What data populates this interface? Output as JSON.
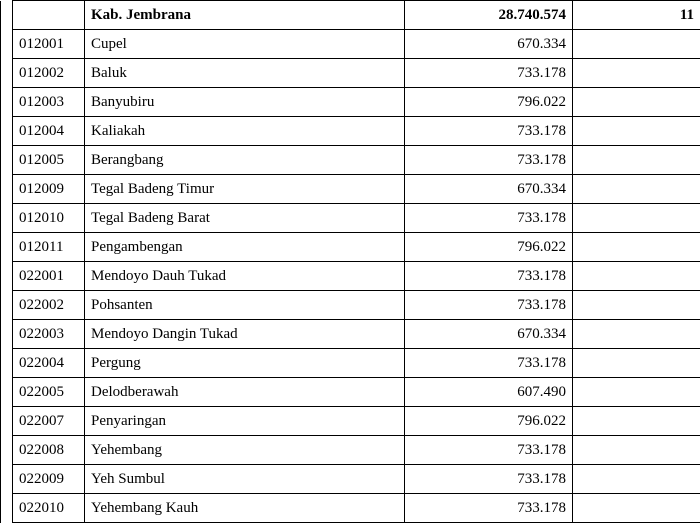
{
  "header": {
    "name": "Kab. Jembrana",
    "total": "28.740.574",
    "extra": "11"
  },
  "rows": [
    {
      "code": "012001",
      "name": "Cupel",
      "value": "670.334"
    },
    {
      "code": "012002",
      "name": "Baluk",
      "value": "733.178"
    },
    {
      "code": "012003",
      "name": "Banyubiru",
      "value": "796.022"
    },
    {
      "code": "012004",
      "name": "Kaliakah",
      "value": "733.178"
    },
    {
      "code": "012005",
      "name": "Berangbang",
      "value": "733.178"
    },
    {
      "code": "012009",
      "name": "Tegal Badeng Timur",
      "value": "670.334"
    },
    {
      "code": "012010",
      "name": "Tegal Badeng Barat",
      "value": "733.178"
    },
    {
      "code": "012011",
      "name": "Pengambengan",
      "value": "796.022"
    },
    {
      "code": "022001",
      "name": "Mendoyo Dauh Tukad",
      "value": "733.178"
    },
    {
      "code": "022002",
      "name": "Pohsanten",
      "value": "733.178"
    },
    {
      "code": "022003",
      "name": "Mendoyo Dangin Tukad",
      "value": "670.334"
    },
    {
      "code": "022004",
      "name": "Pergung",
      "value": "733.178"
    },
    {
      "code": "022005",
      "name": "Delodberawah",
      "value": "607.490"
    },
    {
      "code": "022007",
      "name": "Penyaringan",
      "value": "796.022"
    },
    {
      "code": "022008",
      "name": "Yehembang",
      "value": "733.178"
    },
    {
      "code": "022009",
      "name": "Yeh Sumbul",
      "value": "733.178"
    },
    {
      "code": "022010",
      "name": "Yehembang Kauh",
      "value": "733.178"
    }
  ]
}
